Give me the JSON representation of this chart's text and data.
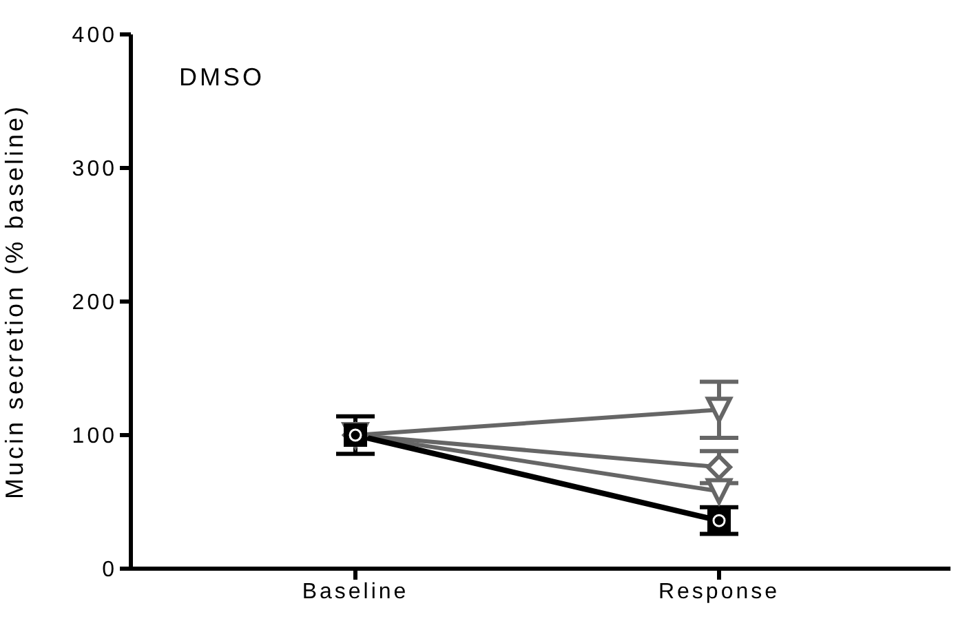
{
  "chart_data": {
    "type": "line",
    "title": "DMSO",
    "ylabel": "Mucin secretion (% baseline)",
    "categories": [
      "Baseline",
      "Response"
    ],
    "ylim": [
      0,
      400
    ],
    "yticks": [
      0,
      100,
      200,
      300,
      400
    ],
    "grid": false,
    "legend": false,
    "series": [
      {
        "color": "#666666",
        "marker": "triangle",
        "values": [
          100,
          119
        ],
        "errors": [
          null,
          21
        ]
      },
      {
        "color": "#666666",
        "marker": "diamond",
        "values": [
          100,
          76
        ],
        "errors": [
          null,
          12
        ]
      },
      {
        "color": "#666666",
        "marker": "triangle",
        "values": [
          100,
          58
        ],
        "errors": [
          null,
          null
        ]
      },
      {
        "color": "#000000",
        "marker": "square",
        "values": [
          100,
          36
        ],
        "errors": [
          14,
          10
        ]
      }
    ]
  }
}
